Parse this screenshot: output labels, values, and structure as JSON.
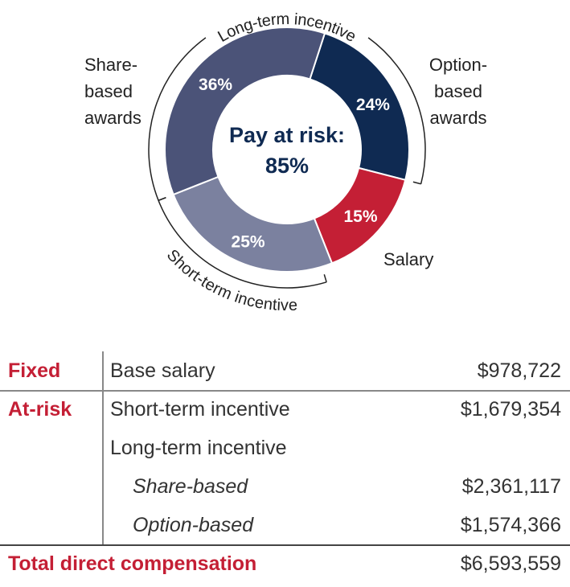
{
  "chart_data": {
    "type": "pie",
    "center_text": [
      "Pay at risk:",
      "85%"
    ],
    "categories": [
      "Option-based awards",
      "Salary",
      "Short-term incentive",
      "Share-based awards"
    ],
    "values": [
      24,
      15,
      25,
      36
    ],
    "value_labels": [
      "24%",
      "15%",
      "25%",
      "36%"
    ],
    "colors": [
      "#0f2a52",
      "#c41f35",
      "#7b819f",
      "#4b5378"
    ],
    "group_label": "Long-term incentive"
  },
  "table": {
    "rows": [
      {
        "group": "Fixed",
        "item": "Base salary",
        "amount": "$978,722"
      },
      {
        "group": "At-risk",
        "item": "Short-term incentive",
        "amount": "$1,679,354"
      },
      {
        "item": "Long-term incentive"
      },
      {
        "item": "Share-based",
        "amount": "$2,361,117",
        "indent": true
      },
      {
        "item": "Option-based",
        "amount": "$1,574,366",
        "indent": true
      }
    ],
    "total": {
      "label": "Total direct compensation",
      "amount": "$6,593,559"
    }
  }
}
